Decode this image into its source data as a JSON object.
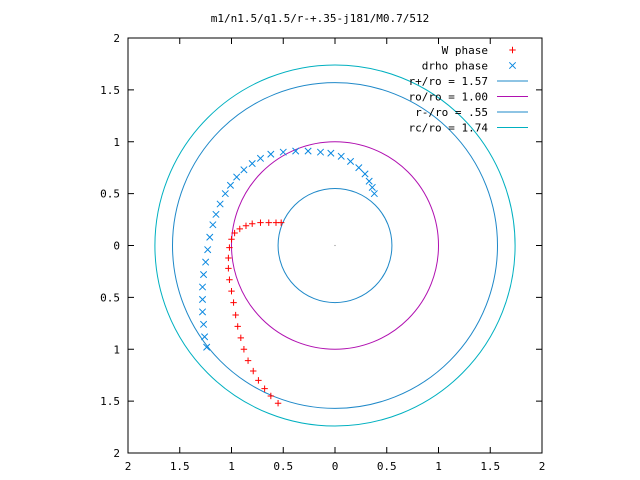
{
  "chart_data": {
    "type": "scatter",
    "title": "m1/n1.5/q1.5/r-+.35-j181/M0.7/512",
    "xlabel": "",
    "ylabel": "",
    "xlim": [
      -2,
      2
    ],
    "ylim": [
      -2,
      2
    ],
    "x_reversed": true,
    "grid": false,
    "legend_position": "top-right",
    "x_ticks": [
      {
        "value": -2,
        "label": "2"
      },
      {
        "value": -1.5,
        "label": "1.5"
      },
      {
        "value": -1,
        "label": "1"
      },
      {
        "value": -0.5,
        "label": "0.5"
      },
      {
        "value": 0,
        "label": "0"
      },
      {
        "value": 0.5,
        "label": "0.5"
      },
      {
        "value": 1,
        "label": "1"
      },
      {
        "value": 1.5,
        "label": "1.5"
      },
      {
        "value": 2,
        "label": "2"
      }
    ],
    "y_ticks": [
      {
        "value": 2,
        "label": "2"
      },
      {
        "value": 1.5,
        "label": "1.5"
      },
      {
        "value": 1,
        "label": "1"
      },
      {
        "value": 0.5,
        "label": "0.5"
      },
      {
        "value": 0,
        "label": "0"
      },
      {
        "value": -0.5,
        "label": "0.5"
      },
      {
        "value": -1,
        "label": "1"
      },
      {
        "value": -1.5,
        "label": "1.5"
      },
      {
        "value": -2,
        "label": "2"
      }
    ],
    "series": [
      {
        "name": "W phase",
        "marker": "plus",
        "color": "#ff0000",
        "points": [
          [
            0.55,
            -1.52
          ],
          [
            0.62,
            -1.45
          ],
          [
            0.68,
            -1.38
          ],
          [
            0.74,
            -1.3
          ],
          [
            0.79,
            -1.21
          ],
          [
            0.84,
            -1.11
          ],
          [
            0.88,
            -1.0
          ],
          [
            0.91,
            -0.89
          ],
          [
            0.94,
            -0.78
          ],
          [
            0.96,
            -0.67
          ],
          [
            0.98,
            -0.55
          ],
          [
            1.0,
            -0.44
          ],
          [
            1.02,
            -0.33
          ],
          [
            1.03,
            -0.22
          ],
          [
            1.03,
            -0.12
          ],
          [
            1.02,
            -0.02
          ],
          [
            1.0,
            0.06
          ],
          [
            0.97,
            0.12
          ],
          [
            0.92,
            0.16
          ],
          [
            0.86,
            0.19
          ],
          [
            0.8,
            0.21
          ],
          [
            0.72,
            0.22
          ],
          [
            0.64,
            0.22
          ],
          [
            0.57,
            0.22
          ],
          [
            0.52,
            0.22
          ]
        ]
      },
      {
        "name": "drho phase",
        "marker": "cross",
        "color": "#0a88e0",
        "points": [
          [
            1.24,
            -0.98
          ],
          [
            1.26,
            -0.88
          ],
          [
            1.27,
            -0.76
          ],
          [
            1.28,
            -0.64
          ],
          [
            1.28,
            -0.52
          ],
          [
            1.28,
            -0.4
          ],
          [
            1.27,
            -0.28
          ],
          [
            1.25,
            -0.16
          ],
          [
            1.23,
            -0.04
          ],
          [
            1.21,
            0.08
          ],
          [
            1.18,
            0.2
          ],
          [
            1.15,
            0.3
          ],
          [
            1.11,
            0.4
          ],
          [
            1.06,
            0.5
          ],
          [
            1.01,
            0.58
          ],
          [
            0.95,
            0.66
          ],
          [
            0.88,
            0.73
          ],
          [
            0.8,
            0.79
          ],
          [
            0.72,
            0.84
          ],
          [
            0.62,
            0.88
          ],
          [
            0.5,
            0.9
          ],
          [
            0.38,
            0.91
          ],
          [
            0.26,
            0.91
          ],
          [
            0.14,
            0.9
          ],
          [
            0.04,
            0.89
          ],
          [
            -0.06,
            0.86
          ],
          [
            -0.15,
            0.81
          ],
          [
            -0.23,
            0.75
          ],
          [
            -0.29,
            0.69
          ],
          [
            -0.33,
            0.62
          ],
          [
            -0.36,
            0.56
          ],
          [
            -0.38,
            0.5
          ]
        ]
      }
    ],
    "circles": [
      {
        "name": "r+/ro = 1.57",
        "radius": 1.57,
        "color": "#1e88c8"
      },
      {
        "name": "ro/ro = 1.00",
        "radius": 1.0,
        "color": "#b010b0"
      },
      {
        "name": "r-/ro = .55",
        "radius": 0.55,
        "color": "#1e88c8"
      },
      {
        "name": "rc/ro = 1.74",
        "radius": 1.74,
        "color": "#00b0c0"
      }
    ]
  }
}
